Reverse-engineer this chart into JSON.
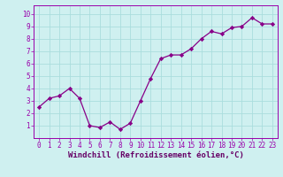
{
  "x": [
    0,
    1,
    2,
    3,
    4,
    5,
    6,
    7,
    8,
    9,
    10,
    11,
    12,
    13,
    14,
    15,
    16,
    17,
    18,
    19,
    20,
    21,
    22,
    23
  ],
  "y": [
    2.5,
    3.2,
    3.4,
    4.0,
    3.2,
    1.0,
    0.85,
    1.3,
    0.7,
    1.2,
    3.0,
    4.8,
    6.4,
    6.7,
    6.7,
    7.2,
    8.0,
    8.6,
    8.4,
    8.9,
    9.0,
    9.7,
    9.2,
    9.2
  ],
  "line_color": "#880088",
  "marker": "D",
  "marker_size": 2.2,
  "linewidth": 0.9,
  "xlabel": "Windchill (Refroidissement éolien,°C)",
  "xlim": [
    -0.5,
    23.5
  ],
  "ylim": [
    0.0,
    10.7
  ],
  "xticks": [
    0,
    1,
    2,
    3,
    4,
    5,
    6,
    7,
    8,
    9,
    10,
    11,
    12,
    13,
    14,
    15,
    16,
    17,
    18,
    19,
    20,
    21,
    22,
    23
  ],
  "yticks": [
    1,
    2,
    3,
    4,
    5,
    6,
    7,
    8,
    9,
    10
  ],
  "bg_color": "#cff0f0",
  "grid_color": "#aadddd",
  "tick_label_fontsize": 5.5,
  "xlabel_fontsize": 6.5,
  "spine_color": "#9900aa",
  "tick_color": "#9900aa",
  "xlabel_color": "#660066"
}
